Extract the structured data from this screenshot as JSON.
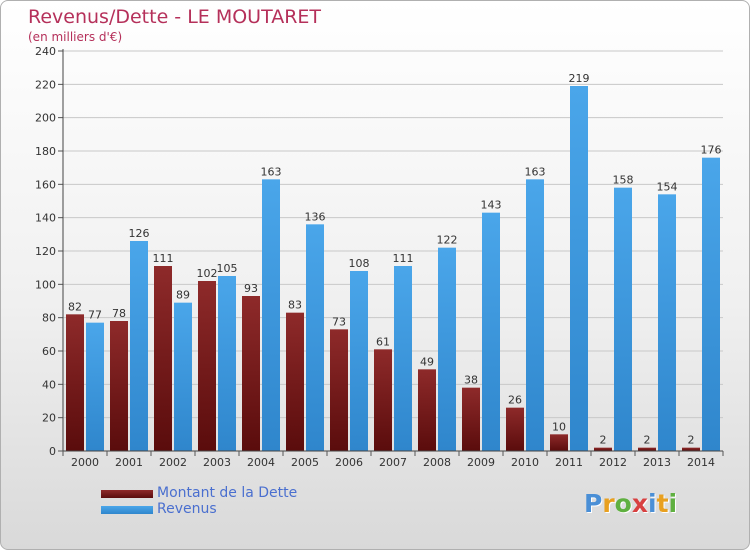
{
  "title": "Revenus/Dette - LE MOUTARET",
  "subtitle": "(en milliers d'€)",
  "logo": "Proxiti",
  "colors": {
    "dette": "#7a1a1a",
    "revenus": "#3d97dc",
    "title": "#b5305a"
  },
  "chart_data": {
    "type": "bar",
    "categories": [
      "2000",
      "2001",
      "2002",
      "2003",
      "2004",
      "2005",
      "2006",
      "2007",
      "2008",
      "2009",
      "2010",
      "2011",
      "2012",
      "2013",
      "2014"
    ],
    "series": [
      {
        "name": "Montant de la Dette",
        "values": [
          82,
          78,
          111,
          102,
          93,
          83,
          73,
          61,
          49,
          38,
          26,
          10,
          2,
          2,
          2
        ]
      },
      {
        "name": "Revenus",
        "values": [
          77,
          126,
          89,
          105,
          163,
          136,
          108,
          111,
          122,
          143,
          163,
          219,
          158,
          154,
          176
        ]
      }
    ],
    "ylim": [
      0,
      240
    ],
    "yticks": [
      0,
      20,
      40,
      60,
      80,
      100,
      120,
      140,
      160,
      180,
      200,
      220,
      240
    ],
    "grid": true,
    "legend": "bottom-left"
  }
}
